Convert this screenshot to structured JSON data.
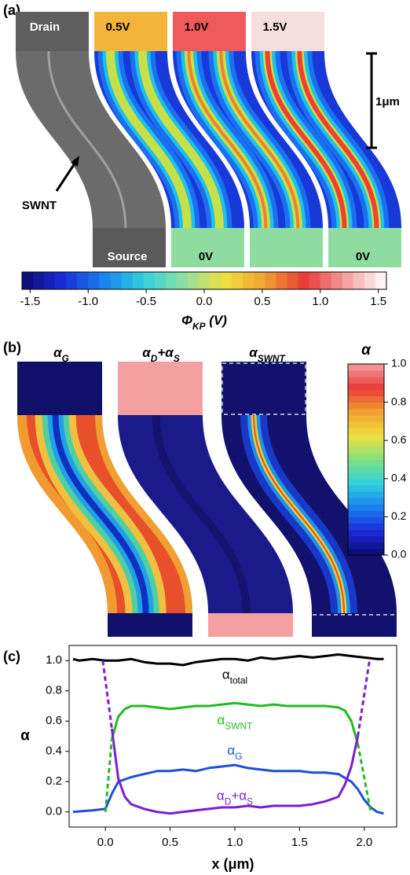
{
  "panel_labels": [
    "(a)",
    "(b)",
    "(c)"
  ],
  "chart_data": [
    {
      "type": "colorbar",
      "orientation": "horizontal",
      "image_labels": [
        "Drain",
        "0.5V",
        "1.0V",
        "1.5V",
        "Source",
        "0V",
        "0V"
      ],
      "annotations": [
        "SWNT"
      ],
      "scale_bar": "1μm",
      "colormap": [
        "#0a0a6e",
        "#1a2ad8",
        "#1a80f0",
        "#30d0e0",
        "#90e0a0",
        "#f0e040",
        "#f0a030",
        "#e83a3a",
        "#f4a0a0",
        "#ffffff"
      ],
      "xlim": [
        -1.57,
        1.57
      ],
      "xticks": [
        -1.5,
        {
          "value": -1,
          "label": "-1.0"
        },
        -0.5,
        {
          "value": 0,
          "label": "0.0"
        },
        0.5,
        {
          "value": 1,
          "label": "1.0"
        },
        1.5
      ],
      "label": [
        [
          "Φ",
          "KP"
        ],
        [
          " (V)"
        ]
      ]
    },
    {
      "type": "colorbar",
      "orientation": "vertical",
      "title": [
        [
          "α"
        ]
      ],
      "image_titles": [
        [
          [
            "α",
            "G"
          ]
        ],
        [
          [
            "α",
            "D"
          ],
          [
            "+α",
            "S"
          ]
        ],
        [
          [
            "α",
            "SWNT"
          ]
        ]
      ],
      "colormap": [
        "#0a0a6e",
        "#1a2ad8",
        "#1a80f0",
        "#30d0e0",
        "#80e080",
        "#f0e040",
        "#f0a030",
        "#e83a3a",
        "#f4a0a0"
      ],
      "ylim": [
        0,
        1
      ],
      "yticks": [
        {
          "value": 0,
          "label": "0.0"
        },
        0.2,
        0.4,
        0.6,
        0.8,
        {
          "value": 1,
          "label": "1.0"
        }
      ]
    },
    {
      "type": "line",
      "xlabel": "x (μm)",
      "ylabel": "α",
      "xlim": [
        -0.28,
        2.25
      ],
      "ylim": [
        -0.1,
        1.1
      ],
      "xticks": [
        {
          "value": 0,
          "label": "0.0"
        },
        0.5,
        {
          "value": 1,
          "label": "1.0"
        },
        1.5,
        {
          "value": 2,
          "label": "2.0"
        }
      ],
      "yticks": [
        {
          "value": 0,
          "label": "0.0"
        },
        0.2,
        0.4,
        0.6,
        0.8,
        {
          "value": 1,
          "label": "1.0"
        }
      ],
      "series": [
        {
          "label": [
            [
              "α",
              "total"
            ]
          ],
          "color": "#000000",
          "x": [
            -0.25,
            -0.2,
            -0.1,
            0,
            0.1,
            0.2,
            0.3,
            0.4,
            0.5,
            0.6,
            0.7,
            0.8,
            0.9,
            1.0,
            1.1,
            1.2,
            1.3,
            1.4,
            1.5,
            1.6,
            1.7,
            1.8,
            1.9,
            2.0,
            2.1,
            2.15
          ],
          "values": [
            1.01,
            1.0,
            1.01,
            1.0,
            1.0,
            1.01,
            0.99,
            0.98,
            0.98,
            0.97,
            0.99,
            1.0,
            1.01,
            1.01,
            1.0,
            1.02,
            1.01,
            1.02,
            1.03,
            1.02,
            1.03,
            1.04,
            1.03,
            1.02,
            1.01,
            1.01
          ]
        },
        {
          "label": [
            [
              "α",
              "SWNT"
            ]
          ],
          "color": "#22bb22",
          "x": [
            0.05,
            0.1,
            0.15,
            0.2,
            0.3,
            0.4,
            0.5,
            0.6,
            0.7,
            0.8,
            0.9,
            1.0,
            1.1,
            1.2,
            1.3,
            1.4,
            1.5,
            1.6,
            1.7,
            1.8,
            1.85,
            1.9,
            1.95
          ],
          "values": [
            0.48,
            0.63,
            0.68,
            0.7,
            0.7,
            0.69,
            0.68,
            0.69,
            0.7,
            0.7,
            0.71,
            0.72,
            0.71,
            0.7,
            0.71,
            0.7,
            0.7,
            0.7,
            0.7,
            0.69,
            0.67,
            0.6,
            0.45
          ]
        },
        {
          "label": [
            [
              "α",
              "G"
            ]
          ],
          "color": "#1f4fd8",
          "x": [
            -0.25,
            -0.1,
            0,
            0.05,
            0.1,
            0.2,
            0.3,
            0.4,
            0.5,
            0.6,
            0.7,
            0.8,
            0.9,
            1.0,
            1.1,
            1.2,
            1.3,
            1.4,
            1.5,
            1.6,
            1.7,
            1.8,
            1.9,
            1.95,
            2.0,
            2.05,
            2.1,
            2.15
          ],
          "values": [
            0.0,
            0.01,
            0.02,
            0.12,
            0.2,
            0.23,
            0.25,
            0.27,
            0.27,
            0.28,
            0.27,
            0.29,
            0.3,
            0.31,
            0.29,
            0.28,
            0.27,
            0.27,
            0.27,
            0.26,
            0.26,
            0.25,
            0.2,
            0.15,
            0.08,
            0.03,
            0.0,
            -0.01
          ]
        },
        {
          "label": [
            [
              "α",
              "D"
            ],
            [
              "+α",
              "S"
            ]
          ],
          "color": "#7a1fd0",
          "x": [
            0.05,
            0.1,
            0.15,
            0.2,
            0.3,
            0.4,
            0.5,
            0.6,
            0.7,
            0.8,
            0.9,
            1.0,
            1.1,
            1.2,
            1.3,
            1.4,
            1.5,
            1.6,
            1.7,
            1.8,
            1.85,
            1.9,
            1.95
          ],
          "values": [
            0.55,
            0.22,
            0.1,
            0.05,
            0.02,
            0.0,
            -0.01,
            0.0,
            0.01,
            0.02,
            0.03,
            0.03,
            0.04,
            0.03,
            0.04,
            0.04,
            0.04,
            0.05,
            0.07,
            0.1,
            0.18,
            0.3,
            0.5
          ]
        },
        {
          "color": "#22bb22",
          "dash": true,
          "x": [
            0,
            0.05
          ],
          "values": [
            0.0,
            0.48
          ]
        },
        {
          "color": "#22bb22",
          "dash": true,
          "x": [
            1.95,
            2.05
          ],
          "values": [
            0.45,
            0.0
          ]
        },
        {
          "color": "#7a1fd0",
          "dash": true,
          "x": [
            -0.02,
            0.05
          ],
          "values": [
            1.0,
            0.55
          ]
        },
        {
          "color": "#7a1fd0",
          "dash": true,
          "x": [
            1.95,
            2.04
          ],
          "values": [
            0.5,
            1.0
          ]
        }
      ]
    }
  ]
}
